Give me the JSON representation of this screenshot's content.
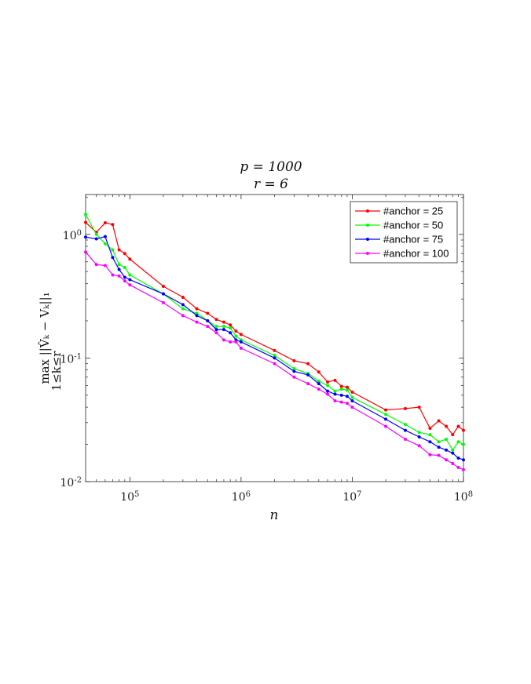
{
  "chart_data": {
    "type": "line",
    "title_lines": [
      "p = 1000",
      "r = 6"
    ],
    "xlabel": "n",
    "ylabel": "max  ||V̂ₖ − Vₖ||₁",
    "ylabel_sub": "1≤k≤r",
    "xscale": "log",
    "yscale": "log",
    "xlim": [
      40000,
      100000000
    ],
    "ylim": [
      0.01,
      2.1
    ],
    "xtick_values": [
      100000,
      1000000,
      10000000,
      100000000
    ],
    "xtick_labels": [
      "10^5",
      "10^6",
      "10^7",
      "10^8"
    ],
    "ytick_values": [
      0.01,
      0.1,
      1
    ],
    "ytick_labels": [
      "10^-2",
      "10^-1",
      "10^0"
    ],
    "grid": false,
    "legend_position": "top-right",
    "x": [
      40000,
      50000,
      60000,
      70000,
      80000,
      90000,
      100000,
      200000,
      300000,
      400000,
      500000,
      600000,
      700000,
      800000,
      900000,
      1000000,
      2000000,
      3000000,
      4000000,
      5000000,
      6000000,
      7000000,
      8000000,
      9000000,
      10000000,
      20000000,
      30000000,
      40000000,
      50000000,
      60000000,
      70000000,
      80000000,
      90000000,
      100000000
    ],
    "series": [
      {
        "name": "#anchor = 25",
        "color": "#ff0000",
        "values": [
          1.25,
          1.04,
          1.24,
          1.2,
          0.75,
          0.7,
          0.63,
          0.38,
          0.31,
          0.25,
          0.23,
          0.205,
          0.195,
          0.185,
          0.165,
          0.155,
          0.115,
          0.095,
          0.09,
          0.077,
          0.064,
          0.066,
          0.059,
          0.058,
          0.053,
          0.038,
          0.039,
          0.04,
          0.027,
          0.031,
          0.028,
          0.024,
          0.028,
          0.026
        ]
      },
      {
        "name": "#anchor = 50",
        "color": "#00ff00",
        "values": [
          1.45,
          1.0,
          0.84,
          0.75,
          0.57,
          0.54,
          0.47,
          0.33,
          0.25,
          0.23,
          0.2,
          0.18,
          0.18,
          0.175,
          0.15,
          0.14,
          0.105,
          0.082,
          0.075,
          0.065,
          0.06,
          0.054,
          0.056,
          0.055,
          0.048,
          0.035,
          0.029,
          0.025,
          0.024,
          0.021,
          0.022,
          0.018,
          0.021,
          0.02
        ]
      },
      {
        "name": "#anchor = 75",
        "color": "#0000ff",
        "values": [
          0.95,
          0.92,
          0.96,
          0.65,
          0.52,
          0.45,
          0.43,
          0.33,
          0.27,
          0.22,
          0.2,
          0.17,
          0.17,
          0.16,
          0.14,
          0.135,
          0.1,
          0.078,
          0.073,
          0.062,
          0.054,
          0.051,
          0.05,
          0.049,
          0.045,
          0.032,
          0.026,
          0.023,
          0.021,
          0.019,
          0.018,
          0.017,
          0.0155,
          0.015
        ]
      },
      {
        "name": "#anchor = 100",
        "color": "#ff00ff",
        "values": [
          0.72,
          0.57,
          0.56,
          0.47,
          0.46,
          0.42,
          0.39,
          0.28,
          0.22,
          0.195,
          0.18,
          0.16,
          0.14,
          0.135,
          0.135,
          0.12,
          0.09,
          0.07,
          0.062,
          0.056,
          0.051,
          0.045,
          0.044,
          0.043,
          0.04,
          0.028,
          0.022,
          0.0195,
          0.0165,
          0.0163,
          0.015,
          0.014,
          0.013,
          0.0125
        ]
      }
    ]
  }
}
